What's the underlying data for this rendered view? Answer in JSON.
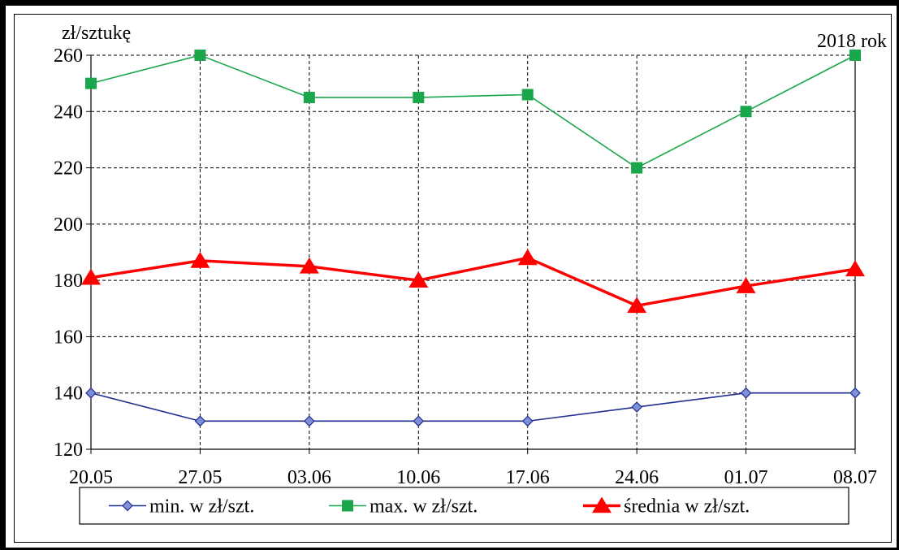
{
  "chart_data": {
    "type": "line",
    "ylabel": "zł/sztukę",
    "annotation": "2018 rok",
    "categories": [
      "20.05",
      "27.05",
      "03.06",
      "10.06",
      "17.06",
      "24.06",
      "01.07",
      "08.07"
    ],
    "ylim": [
      120,
      260
    ],
    "yticks": [
      120,
      140,
      160,
      180,
      200,
      220,
      240,
      260
    ],
    "grid": true,
    "legend_position": "bottom",
    "series": [
      {
        "name": "min. w zł/szt.",
        "color": "#1f2f8f",
        "marker": "diamond",
        "values": [
          140,
          130,
          130,
          130,
          130,
          135,
          140,
          140
        ]
      },
      {
        "name": "max. w zł/szt.",
        "color": "#1aa64a",
        "marker": "square",
        "values": [
          250,
          260,
          245,
          245,
          246,
          220,
          240,
          260
        ]
      },
      {
        "name": "średnia w zł/szt.",
        "color": "#ff0000",
        "marker": "triangle",
        "values": [
          181,
          187,
          185,
          180,
          188,
          171,
          178,
          184
        ]
      }
    ]
  }
}
